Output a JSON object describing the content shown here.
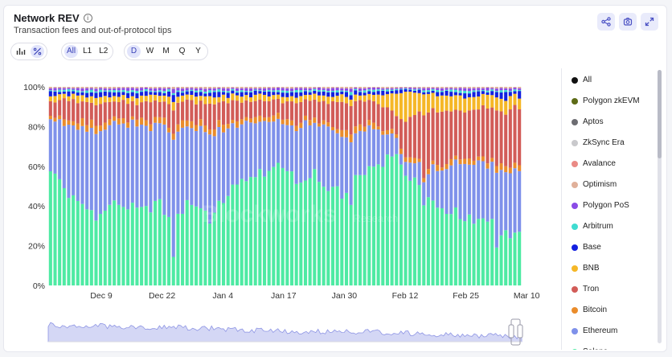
{
  "header": {
    "title": "Network REV",
    "info_icon": "info-icon",
    "subtitle": "Transaction fees and out-of-protocol tips"
  },
  "toolbar_icons": [
    "share-icon",
    "camera-icon",
    "expand-icon"
  ],
  "chart_type_icons": [
    "bar-chart-icon",
    "percent-icon"
  ],
  "layer_filter": {
    "options": [
      "All",
      "L1",
      "L2"
    ],
    "selected": "All"
  },
  "timeframe": {
    "options": [
      "D",
      "W",
      "M",
      "Q",
      "Y"
    ],
    "selected": "D"
  },
  "legend": [
    {
      "label": "All",
      "color": "#111111"
    },
    {
      "label": "Polygon zkEVM",
      "color": "#5d6b16"
    },
    {
      "label": "Aptos",
      "color": "#6d6d72"
    },
    {
      "label": "ZkSync Era",
      "color": "#c9c9cc"
    },
    {
      "label": "Avalance",
      "color": "#ea8a85"
    },
    {
      "label": "Optimism",
      "color": "#e0b09a"
    },
    {
      "label": "Polygon PoS",
      "color": "#8a4be6"
    },
    {
      "label": "Arbitrum",
      "color": "#3fdcd1"
    },
    {
      "label": "Base",
      "color": "#1320e0"
    },
    {
      "label": "BNB",
      "color": "#f5b727"
    },
    {
      "label": "Tron",
      "color": "#d25c58"
    },
    {
      "label": "Bitcoin",
      "color": "#ea8c2b"
    },
    {
      "label": "Ethereum",
      "color": "#7f91ea"
    },
    {
      "label": "Solana",
      "color": "#4eeaa3"
    }
  ],
  "chart_data": {
    "type": "bar",
    "stacked": true,
    "normalized": true,
    "title": "Network REV",
    "subtitle": "Transaction fees and out-of-protocol tips",
    "y_ticks": [
      "0%",
      "20%",
      "40%",
      "60%",
      "80%",
      "100%"
    ],
    "ylim": [
      0,
      100
    ],
    "x_ticks": [
      "Dec 9",
      "Dec 22",
      "Jan 4",
      "Jan 17",
      "Jan 30",
      "Feb 12",
      "Feb 25",
      "Mar 10"
    ],
    "grid": false,
    "legend_position": "right",
    "watermark": "Blockworks Research",
    "bar_count": 104,
    "anchors_solana_pct": [
      [
        0,
        58
      ],
      [
        5,
        38
      ],
      [
        10,
        30
      ],
      [
        15,
        40
      ],
      [
        20,
        35
      ],
      [
        24,
        40
      ],
      [
        27,
        24
      ],
      [
        30,
        42
      ],
      [
        35,
        28
      ],
      [
        40,
        46
      ],
      [
        45,
        55
      ],
      [
        50,
        60
      ],
      [
        52,
        58
      ],
      [
        55,
        45
      ],
      [
        58,
        62
      ],
      [
        60,
        48
      ],
      [
        62,
        42
      ],
      [
        65,
        40
      ],
      [
        68,
        57
      ],
      [
        72,
        62
      ],
      [
        76,
        75
      ],
      [
        80,
        68
      ],
      [
        83,
        45
      ],
      [
        86,
        40
      ],
      [
        90,
        35
      ],
      [
        93,
        28
      ],
      [
        96,
        32
      ],
      [
        100,
        25
      ],
      [
        103,
        27
      ]
    ],
    "anchors_ethereum_pct": [
      [
        0,
        28
      ],
      [
        10,
        35
      ],
      [
        20,
        40
      ],
      [
        30,
        38
      ],
      [
        40,
        30
      ],
      [
        50,
        22
      ],
      [
        60,
        28
      ],
      [
        70,
        20
      ],
      [
        76,
        8
      ],
      [
        80,
        10
      ],
      [
        86,
        20
      ],
      [
        90,
        25
      ],
      [
        95,
        28
      ],
      [
        100,
        30
      ],
      [
        103,
        32
      ]
    ],
    "anchors_tron_pct": [
      [
        0,
        8
      ],
      [
        10,
        9
      ],
      [
        20,
        9
      ],
      [
        30,
        9
      ],
      [
        40,
        10
      ],
      [
        50,
        8
      ],
      [
        60,
        10
      ],
      [
        70,
        12
      ],
      [
        76,
        10
      ],
      [
        78,
        25
      ],
      [
        82,
        30
      ],
      [
        86,
        28
      ],
      [
        90,
        22
      ],
      [
        95,
        24
      ],
      [
        100,
        26
      ],
      [
        103,
        30
      ]
    ],
    "anchors_bnb_pct": [
      [
        0,
        2
      ],
      [
        70,
        2
      ],
      [
        74,
        6
      ],
      [
        76,
        12
      ],
      [
        78,
        20
      ],
      [
        80,
        12
      ],
      [
        84,
        8
      ],
      [
        90,
        6
      ],
      [
        103,
        5
      ]
    ]
  },
  "navigator": {
    "label": "range-navigator"
  }
}
